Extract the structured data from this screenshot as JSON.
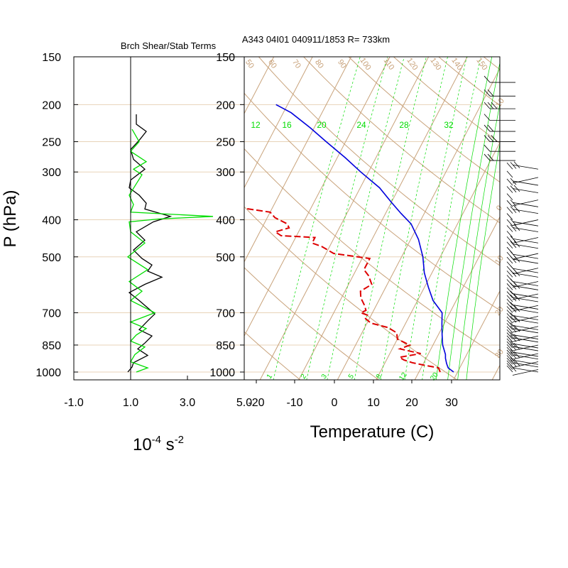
{
  "header": {
    "left_title": "Brch Shear/Stab Terms",
    "right_title": "A343 04I01 040911/1853 R= 733km"
  },
  "colors": {
    "isotherm": "#c8a27a",
    "isobar": "#e8d3b8",
    "mixing_ratio": "#00dd00",
    "adiabat_label": "#c8a27a",
    "temperature": "#0000dd",
    "dewpoint": "#dd0000",
    "shear_term": "#000000",
    "stability_term": "#00dd00"
  },
  "chart_data": [
    {
      "type": "line",
      "title": "Brch Shear/Stab Terms",
      "ylabel": "P (hPa)",
      "xlabel_base": "10",
      "xlabel_exp1": "-4",
      "xlabel_unit": " s",
      "xlabel_exp2": "-2",
      "x_ticks": [
        "-1.0",
        "1.0",
        "3.0",
        "5.0"
      ],
      "x_tick_values": [
        -1,
        1,
        3,
        5
      ],
      "xlim": [
        -1,
        5
      ],
      "pressure_ticks": [
        150,
        200,
        250,
        300,
        400,
        500,
        700,
        850,
        1000
      ],
      "pressure_tick_labels": [
        "150",
        "200",
        "250",
        "300",
        "400",
        "500",
        "700",
        "850",
        "1000"
      ],
      "ylim": [
        1050,
        150
      ],
      "y_scale": "log",
      "zero_line": 1,
      "series": [
        {
          "key": "shear",
          "color": "#000000",
          "points": [
            [
              1.2,
              212
            ],
            [
              1.2,
              225
            ],
            [
              1.55,
              235
            ],
            [
              1.3,
              248
            ],
            [
              1.0,
              262
            ],
            [
              1.1,
              278
            ],
            [
              1.5,
              295
            ],
            [
              1.0,
              315
            ],
            [
              0.95,
              330
            ],
            [
              1.3,
              345
            ],
            [
              1.55,
              362
            ],
            [
              1.5,
              375
            ],
            [
              2.4,
              392
            ],
            [
              1.8,
              405
            ],
            [
              1.2,
              430
            ],
            [
              1.5,
              452
            ],
            [
              1.1,
              480
            ],
            [
              1.4,
              505
            ],
            [
              1.75,
              525
            ],
            [
              1.6,
              545
            ],
            [
              2.1,
              565
            ],
            [
              1.5,
              590
            ],
            [
              0.95,
              620
            ],
            [
              1.3,
              650
            ],
            [
              1.85,
              705
            ],
            [
              1.6,
              735
            ],
            [
              1.3,
              775
            ],
            [
              1.75,
              805
            ],
            [
              1.5,
              840
            ],
            [
              1.25,
              870
            ],
            [
              1.6,
              905
            ],
            [
              1.1,
              945
            ],
            [
              1.05,
              970
            ],
            [
              0.9,
              1000
            ]
          ]
        },
        {
          "key": "stability",
          "color": "#00dd00",
          "points": [
            [
              1.05,
              232
            ],
            [
              1.3,
              250
            ],
            [
              1.0,
              265
            ],
            [
              1.55,
              282
            ],
            [
              1.1,
              295
            ],
            [
              1.4,
              305
            ],
            [
              1.2,
              322
            ],
            [
              0.95,
              345
            ],
            [
              1.1,
              365
            ],
            [
              1.0,
              382
            ],
            [
              3.9,
              392
            ],
            [
              2.0,
              398
            ],
            [
              0.95,
              405
            ],
            [
              1.0,
              430
            ],
            [
              1.5,
              460
            ],
            [
              0.9,
              500
            ],
            [
              1.6,
              540
            ],
            [
              0.95,
              580
            ],
            [
              1.4,
              615
            ],
            [
              1.0,
              650
            ],
            [
              1.85,
              700
            ],
            [
              1.0,
              740
            ],
            [
              1.55,
              770
            ],
            [
              1.2,
              800
            ],
            [
              1.0,
              830
            ],
            [
              1.5,
              860
            ],
            [
              1.15,
              900
            ],
            [
              1.0,
              940
            ],
            [
              1.6,
              975
            ],
            [
              1.2,
              1000
            ]
          ]
        }
      ]
    },
    {
      "type": "line",
      "title": "A343 04I01 040911/1853 R= 733km",
      "xlabel": "Temperature (C)",
      "x_ticks": [
        "-20",
        "-10",
        "0",
        "10",
        "20",
        "30"
      ],
      "x_tick_values": [
        -20,
        -10,
        0,
        10,
        20,
        30
      ],
      "xlim": [
        -23,
        43
      ],
      "pressure_ticks": [
        150,
        200,
        250,
        300,
        400,
        500,
        700,
        850,
        1000
      ],
      "pressure_tick_labels": [
        "150",
        "200",
        "250",
        "300",
        "400",
        "500",
        "700",
        "850",
        "1000"
      ],
      "ylim": [
        1050,
        150
      ],
      "y_scale": "log",
      "skew": true,
      "mixing_ratio_top_labels": [
        "12",
        "16",
        "20",
        "24",
        "28",
        "32"
      ],
      "mixing_ratio_bottom_labels": [
        "1",
        "2",
        "3",
        "5",
        "8",
        "12",
        "20"
      ],
      "adiabat_top_labels": [
        "50",
        "60",
        "70",
        "80",
        "90",
        "100",
        "110",
        "120",
        "130",
        "140",
        "150"
      ],
      "adiabat_side_labels": [
        "-10",
        "0",
        "10",
        "20",
        "30"
      ],
      "series": [
        {
          "key": "temperature",
          "color": "#0000dd",
          "points": [
            [
              29,
              1000
            ],
            [
              27,
              975
            ],
            [
              26,
              950
            ],
            [
              25,
              920
            ],
            [
              24.5,
              900
            ],
            [
              22.5,
              850
            ],
            [
              21,
              800
            ],
            [
              19.5,
              750
            ],
            [
              18,
              700
            ],
            [
              14,
              650
            ],
            [
              11,
              600
            ],
            [
              8,
              550
            ],
            [
              5.5,
              500
            ],
            [
              2,
              450
            ],
            [
              -2,
              410
            ],
            [
              -6,
              385
            ],
            [
              -10,
              360
            ],
            [
              -15,
              330
            ],
            [
              -22,
              300
            ],
            [
              -28,
              275
            ],
            [
              -35,
              250
            ],
            [
              -41,
              230
            ],
            [
              -48,
              210
            ],
            [
              -53,
              200
            ]
          ]
        },
        {
          "key": "dewpoint",
          "color": "#dd0000",
          "dash": true,
          "points": [
            [
              25.5,
              1000
            ],
            [
              24.5,
              975
            ],
            [
              20.5,
              960
            ],
            [
              17,
              945
            ],
            [
              14.5,
              930
            ],
            [
              13,
              915
            ],
            [
              18,
              895
            ],
            [
              12,
              870
            ],
            [
              14,
              850
            ],
            [
              10,
              820
            ],
            [
              9,
              790
            ],
            [
              6,
              765
            ],
            [
              1,
              745
            ],
            [
              -1,
              725
            ],
            [
              -1,
              710
            ],
            [
              -3,
              700
            ],
            [
              -2,
              690
            ],
            [
              -3,
              670
            ],
            [
              -5,
              640
            ],
            [
              -6,
              615
            ],
            [
              -4,
              590
            ],
            [
              -6,
              560
            ],
            [
              -8,
              540
            ],
            [
              -8,
              520
            ],
            [
              -8,
              505
            ],
            [
              -18,
              490
            ],
            [
              -22,
              470
            ],
            [
              -25,
              460
            ],
            [
              -25,
              445
            ],
            [
              -34,
              440
            ],
            [
              -36,
              430
            ],
            [
              -33,
              420
            ],
            [
              -34,
              410
            ],
            [
              -38,
              395
            ],
            [
              -40,
              382
            ],
            [
              -50,
              370
            ],
            [
              -56,
              363
            ],
            [
              -60,
              355
            ],
            [
              -61,
              340
            ],
            [
              -62,
              330
            ],
            [
              -64,
              320
            ],
            [
              -64,
              300
            ],
            [
              -66,
              280
            ],
            [
              -65,
              262
            ],
            [
              -66,
              250
            ],
            [
              -70,
              240
            ],
            [
              -70,
              228
            ],
            [
              -72,
              220
            ]
          ]
        }
      ]
    }
  ]
}
